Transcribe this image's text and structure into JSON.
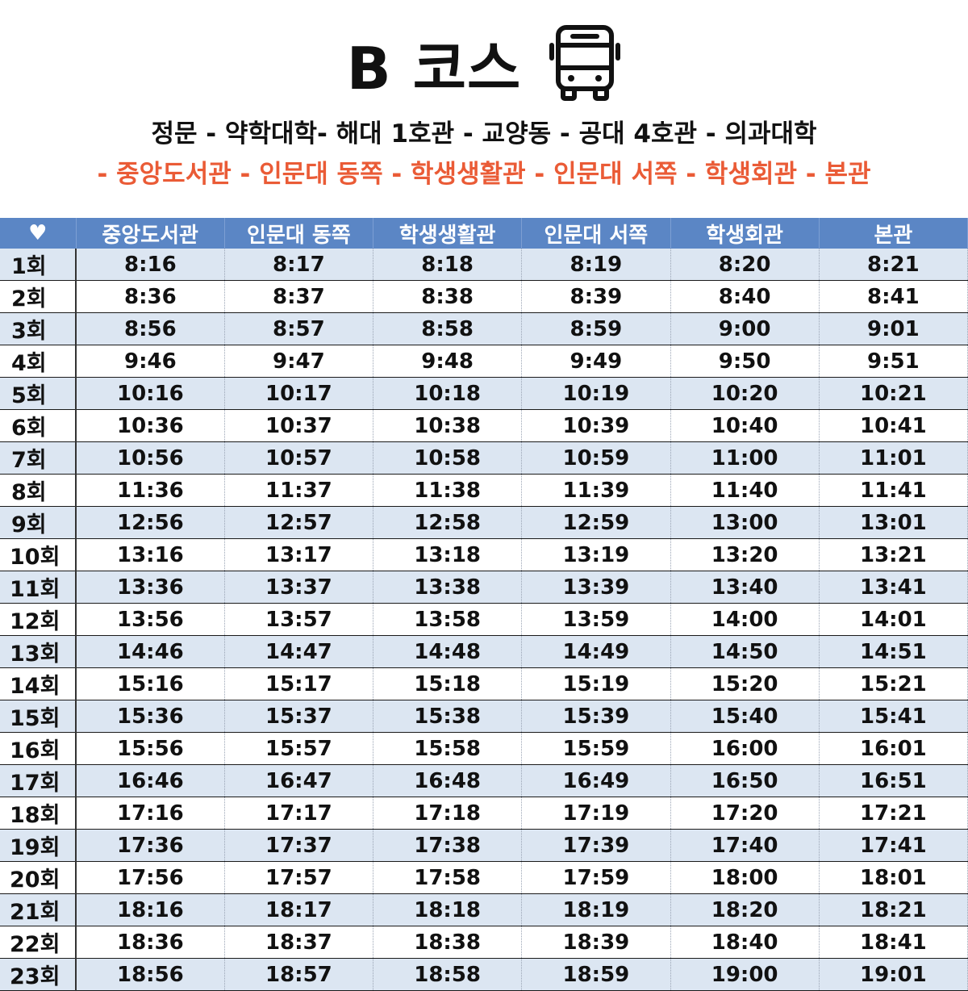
{
  "header": {
    "title": "B 코스",
    "route_line1": "정문 - 약학대학- 해대 1호관 - 교양동 - 공대 4호관 - 의과대학",
    "route_line2": "- 중앙도서관 - 인문대 동쪽 - 학생생활관 - 인문대 서쪽 - 학생회관 - 본관",
    "route_line2_color": "#ea5b36",
    "icon": "bus-icon"
  },
  "table": {
    "corner_symbol": "♥",
    "header_color": "#5b86c5",
    "stripe_color": "#dce6f2",
    "columns": [
      "중앙도서관",
      "인문대 동쪽",
      "학생생활관",
      "인문대 서쪽",
      "학생회관",
      "본관"
    ],
    "rows": [
      {
        "run": "1회",
        "times": [
          "8:16",
          "8:17",
          "8:18",
          "8:19",
          "8:20",
          "8:21"
        ]
      },
      {
        "run": "2회",
        "times": [
          "8:36",
          "8:37",
          "8:38",
          "8:39",
          "8:40",
          "8:41"
        ]
      },
      {
        "run": "3회",
        "times": [
          "8:56",
          "8:57",
          "8:58",
          "8:59",
          "9:00",
          "9:01"
        ]
      },
      {
        "run": "4회",
        "times": [
          "9:46",
          "9:47",
          "9:48",
          "9:49",
          "9:50",
          "9:51"
        ]
      },
      {
        "run": "5회",
        "times": [
          "10:16",
          "10:17",
          "10:18",
          "10:19",
          "10:20",
          "10:21"
        ]
      },
      {
        "run": "6회",
        "times": [
          "10:36",
          "10:37",
          "10:38",
          "10:39",
          "10:40",
          "10:41"
        ]
      },
      {
        "run": "7회",
        "times": [
          "10:56",
          "10:57",
          "10:58",
          "10:59",
          "11:00",
          "11:01"
        ]
      },
      {
        "run": "8회",
        "times": [
          "11:36",
          "11:37",
          "11:38",
          "11:39",
          "11:40",
          "11:41"
        ]
      },
      {
        "run": "9회",
        "times": [
          "12:56",
          "12:57",
          "12:58",
          "12:59",
          "13:00",
          "13:01"
        ]
      },
      {
        "run": "10회",
        "times": [
          "13:16",
          "13:17",
          "13:18",
          "13:19",
          "13:20",
          "13:21"
        ]
      },
      {
        "run": "11회",
        "times": [
          "13:36",
          "13:37",
          "13:38",
          "13:39",
          "13:40",
          "13:41"
        ]
      },
      {
        "run": "12회",
        "times": [
          "13:56",
          "13:57",
          "13:58",
          "13:59",
          "14:00",
          "14:01"
        ]
      },
      {
        "run": "13회",
        "times": [
          "14:46",
          "14:47",
          "14:48",
          "14:49",
          "14:50",
          "14:51"
        ]
      },
      {
        "run": "14회",
        "times": [
          "15:16",
          "15:17",
          "15:18",
          "15:19",
          "15:20",
          "15:21"
        ]
      },
      {
        "run": "15회",
        "times": [
          "15:36",
          "15:37",
          "15:38",
          "15:39",
          "15:40",
          "15:41"
        ]
      },
      {
        "run": "16회",
        "times": [
          "15:56",
          "15:57",
          "15:58",
          "15:59",
          "16:00",
          "16:01"
        ]
      },
      {
        "run": "17회",
        "times": [
          "16:46",
          "16:47",
          "16:48",
          "16:49",
          "16:50",
          "16:51"
        ]
      },
      {
        "run": "18회",
        "times": [
          "17:16",
          "17:17",
          "17:18",
          "17:19",
          "17:20",
          "17:21"
        ]
      },
      {
        "run": "19회",
        "times": [
          "17:36",
          "17:37",
          "17:38",
          "17:39",
          "17:40",
          "17:41"
        ]
      },
      {
        "run": "20회",
        "times": [
          "17:56",
          "17:57",
          "17:58",
          "17:59",
          "18:00",
          "18:01"
        ]
      },
      {
        "run": "21회",
        "times": [
          "18:16",
          "18:17",
          "18:18",
          "18:19",
          "18:20",
          "18:21"
        ]
      },
      {
        "run": "22회",
        "times": [
          "18:36",
          "18:37",
          "18:38",
          "18:39",
          "18:40",
          "18:41"
        ]
      },
      {
        "run": "23회",
        "times": [
          "18:56",
          "18:57",
          "18:58",
          "18:59",
          "19:00",
          "19:01"
        ]
      }
    ]
  }
}
